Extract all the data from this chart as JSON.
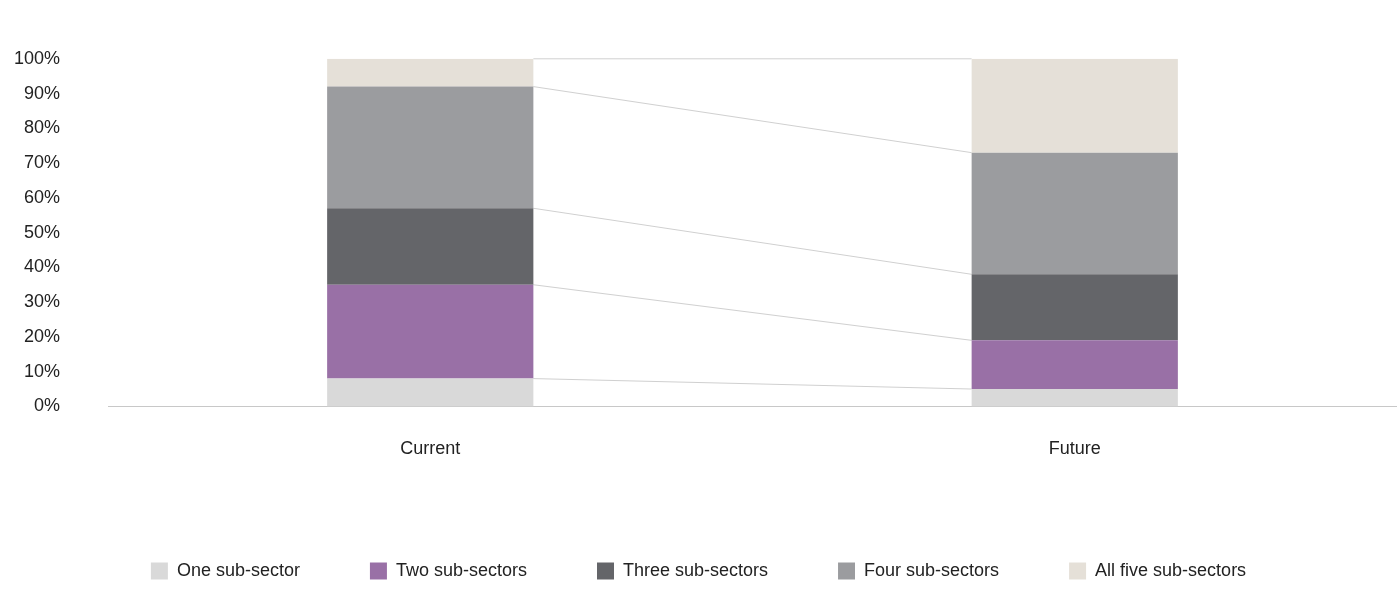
{
  "chart_data": {
    "type": "bar",
    "stacked": true,
    "categories": [
      "Current",
      "Future"
    ],
    "series": [
      {
        "name": "One sub-sector",
        "color": "#d9d9d9",
        "values": [
          8,
          5
        ]
      },
      {
        "name": "Two sub-sectors",
        "color": "#9970a6",
        "values": [
          27,
          14
        ]
      },
      {
        "name": "Three sub-sectors",
        "color": "#646569",
        "values": [
          22,
          19
        ]
      },
      {
        "name": "Four sub-sectors",
        "color": "#9b9c9f",
        "values": [
          35,
          35
        ]
      },
      {
        "name": "All five sub-sectors",
        "color": "#e5e0d8",
        "values": [
          8,
          27
        ]
      }
    ],
    "ylim": [
      0,
      100
    ],
    "yticks": [
      {
        "value": 0,
        "label": "0%"
      },
      {
        "value": 10,
        "label": "10%"
      },
      {
        "value": 20,
        "label": "20%"
      },
      {
        "value": 30,
        "label": "30%"
      },
      {
        "value": 40,
        "label": "40%"
      },
      {
        "value": 50,
        "label": "50%"
      },
      {
        "value": 60,
        "label": "60%"
      },
      {
        "value": 70,
        "label": "70%"
      },
      {
        "value": 80,
        "label": "80%"
      },
      {
        "value": 90,
        "label": "90%"
      },
      {
        "value": 100,
        "label": "100%"
      }
    ],
    "grid": false,
    "legend": "bottom"
  }
}
